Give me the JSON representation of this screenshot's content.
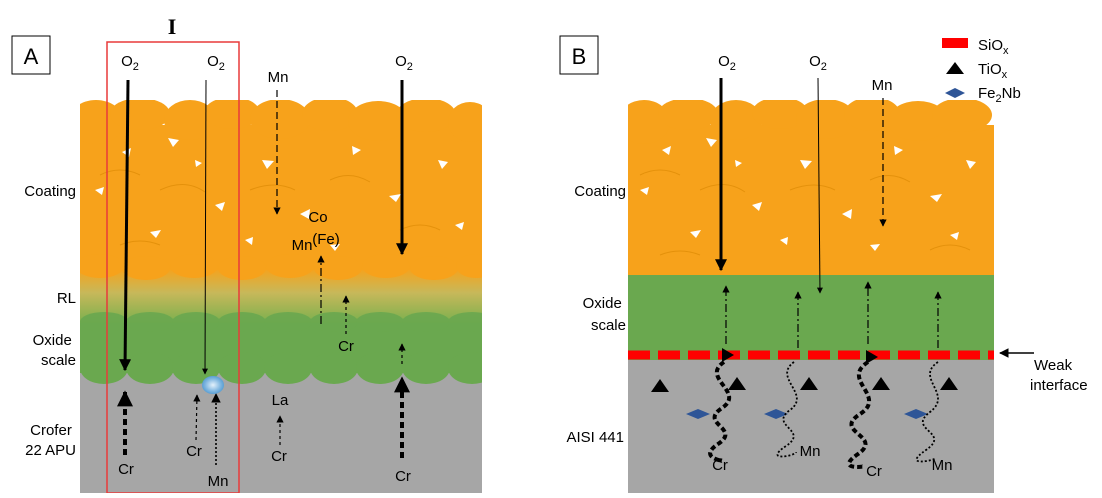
{
  "panel_a": {
    "label": "A",
    "highlight_label": "I",
    "layers": {
      "coating": "Coating",
      "rl": "RL",
      "oxide": "Oxide scale",
      "substrate": "Crofer 22 APU"
    },
    "species": {
      "o2": "O2",
      "mn": "Mn",
      "cr": "Cr",
      "la": "La",
      "co": "Co",
      "fe": "(Fe)"
    }
  },
  "panel_b": {
    "label": "B",
    "layers": {
      "coating": "Coating",
      "oxide": "Oxide scale",
      "substrate": "AISI 441"
    },
    "interface": "Weak interface",
    "species": {
      "o2": "O2",
      "mn": "Mn",
      "cr": "Cr"
    },
    "legend": [
      {
        "text": "SiOx",
        "symbol": "red-bar",
        "color": "#ff0000"
      },
      {
        "text": "TiOx",
        "symbol": "black-triangle",
        "color": "#000000"
      },
      {
        "text": "Fe2Nb",
        "symbol": "blue-diamond",
        "color": "#2e5597"
      }
    ]
  },
  "colors": {
    "coating": "#f7a21b",
    "oxide": "#6aa84f",
    "substrate": "#a6a6a6",
    "highlight_box": "#e83a3a",
    "sio2": "#ff0000",
    "fe2nb": "#2e5597"
  }
}
